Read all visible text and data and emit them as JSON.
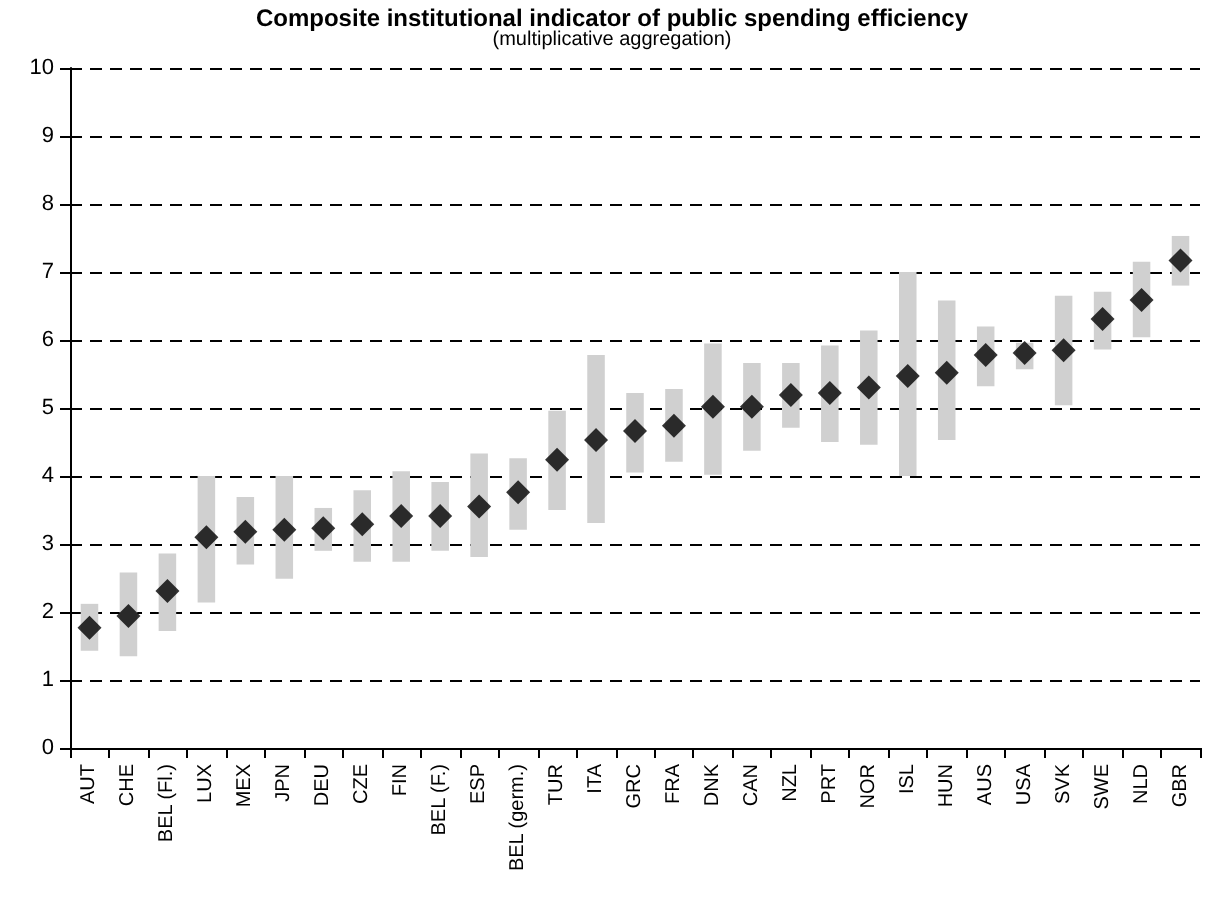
{
  "chart_data": {
    "type": "bar",
    "title": "Composite institutional indicator of public spending efficiency",
    "subtitle": "(multiplicative aggregation)",
    "categories": [
      "AUT",
      "CHE",
      "BEL (Fl.)",
      "LUX",
      "MEX",
      "JPN",
      "DEU",
      "CZE",
      "FIN",
      "BEL (F.)",
      "ESP",
      "BEL (germ.)",
      "TUR",
      "ITA",
      "GRC",
      "FRA",
      "DNK",
      "CAN",
      "NZL",
      "PRT",
      "NOR",
      "ISL",
      "HUN",
      "AUS",
      "USA",
      "SVK",
      "SWE",
      "NLD",
      "GBR"
    ],
    "series": [
      {
        "color": "#d0d0d0",
        "base": [
          1.43,
          1.35,
          1.72,
          2.14,
          2.7,
          2.49,
          2.9,
          2.74,
          2.74,
          2.9,
          2.81,
          3.21,
          3.5,
          3.31,
          4.05,
          4.21,
          4.02,
          4.37,
          4.71,
          4.5,
          4.46,
          4.0,
          4.53,
          5.32,
          5.57,
          5.04,
          5.86,
          6.04,
          6.8
        ],
        "values": [
          0.69,
          1.23,
          1.14,
          1.86,
          0.99,
          1.51,
          0.63,
          1.05,
          1.33,
          1.01,
          1.52,
          1.05,
          1.46,
          2.47,
          1.17,
          1.07,
          1.93,
          1.29,
          0.95,
          1.42,
          1.68,
          3.0,
          2.05,
          0.88,
          0.39,
          1.61,
          0.85,
          1.11,
          0.73
        ]
      },
      {
        "type": "scatter",
        "color": "#000000",
        "marker": "diamond",
        "x": [
          "AUT",
          "CHE",
          "BEL (Fl.)",
          "LUX",
          "MEX",
          "JPN",
          "DEU",
          "CZE",
          "FIN",
          "BEL (F.)",
          "ESP",
          "BEL (germ.)",
          "TUR",
          "ITA",
          "GRC",
          "FRA",
          "DNK",
          "CAN",
          "NZL",
          "PRT",
          "NOR",
          "ISL",
          "HUN",
          "AUS",
          "USA",
          "SVK",
          "SWE",
          "NLD",
          "GBR"
        ],
        "values": [
          1.77,
          1.94,
          2.31,
          3.1,
          3.18,
          3.21,
          3.23,
          3.29,
          3.41,
          3.41,
          3.55,
          3.76,
          4.24,
          4.53,
          4.66,
          4.74,
          5.02,
          5.02,
          5.19,
          5.22,
          5.3,
          5.47,
          5.52,
          5.78,
          5.81,
          5.85,
          6.31,
          6.59,
          7.17
        ]
      }
    ],
    "ylim": [
      0,
      10
    ],
    "yticks": [
      0,
      1,
      2,
      3,
      4,
      5,
      6,
      7,
      8,
      9,
      10
    ],
    "grid": "y",
    "line_style": "dashed"
  }
}
